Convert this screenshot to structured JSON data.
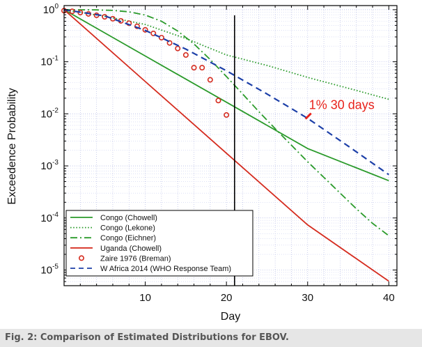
{
  "caption": "Fig. 2: Comparison of Estimated Distributions for EBOV.",
  "chart_data": {
    "type": "line",
    "xlabel": "Day",
    "ylabel": "Exceedence Probability",
    "xlim": [
      0,
      41
    ],
    "ylim": [
      5e-06,
      1.2
    ],
    "yscale": "log",
    "xticks": [
      10,
      20,
      30,
      40
    ],
    "xtick_labels": [
      "10",
      "20",
      "30",
      "40"
    ],
    "yticks": [
      {
        "mantissa": "10",
        "exp": "0",
        "value": 1
      },
      {
        "mantissa": "10",
        "exp": "-1",
        "value": 0.1
      },
      {
        "mantissa": "10",
        "exp": "-2",
        "value": 0.01
      },
      {
        "mantissa": "10",
        "exp": "-3",
        "value": 0.001
      },
      {
        "mantissa": "10",
        "exp": "-4",
        "value": 0.0001
      },
      {
        "mantissa": "10",
        "exp": "-5",
        "value": 1e-05
      }
    ],
    "vline_x": 21,
    "series": [
      {
        "name": "Congo (Chowell)",
        "style": "solid",
        "color": "#2a9a2a",
        "x": [
          0,
          10,
          20,
          30,
          40
        ],
        "y": [
          1,
          0.129,
          0.0167,
          0.00215,
          0.00052
        ]
      },
      {
        "name": "Congo (Lekone)",
        "style": "dotted",
        "color": "#2a9a2a",
        "x": [
          0,
          5,
          10,
          15,
          20,
          25,
          30,
          35,
          40
        ],
        "y": [
          1,
          0.75,
          0.52,
          0.28,
          0.135,
          0.085,
          0.05,
          0.031,
          0.019
        ]
      },
      {
        "name": "Congo (Eichner)",
        "style": "dashdot",
        "color": "#2a9a2a",
        "x": [
          0,
          4,
          6,
          8,
          10,
          12,
          14,
          16,
          18,
          20,
          22,
          24,
          26,
          28,
          30,
          32,
          34,
          36,
          38,
          40
        ],
        "y": [
          1,
          0.99,
          0.97,
          0.91,
          0.79,
          0.6,
          0.39,
          0.22,
          0.11,
          0.052,
          0.024,
          0.011,
          0.0052,
          0.0025,
          0.0012,
          0.0006,
          0.0003,
          0.00015,
          7.85e-05,
          4.55e-05
        ]
      },
      {
        "name": "Uganda (Chowell)",
        "style": "solid",
        "color": "#d52b1e",
        "x": [
          0,
          10,
          20,
          30,
          40
        ],
        "y": [
          1,
          0.0417,
          0.00175,
          7.35e-05,
          6.1e-06
        ]
      },
      {
        "name": "Zaire 1976 (Breman)",
        "style": "markers",
        "color": "#d52b1e",
        "x": [
          0,
          1,
          2,
          3,
          4,
          5,
          6,
          7,
          8,
          9,
          10,
          11,
          12,
          13,
          14,
          15,
          16,
          17,
          18,
          19,
          20
        ],
        "y": [
          0.96,
          0.93,
          0.88,
          0.83,
          0.78,
          0.73,
          0.67,
          0.61,
          0.55,
          0.48,
          0.41,
          0.35,
          0.29,
          0.23,
          0.18,
          0.135,
          0.077,
          0.077,
          0.045,
          0.018,
          0.0095
        ]
      },
      {
        "name": "W Africa 2014 (WHO Response Team)",
        "style": "dashed",
        "color": "#1c3fa8",
        "x": [
          0,
          5,
          10,
          15,
          20,
          25,
          30,
          35,
          40
        ],
        "y": [
          1,
          0.76,
          0.4,
          0.175,
          0.067,
          0.024,
          0.0082,
          0.0024,
          0.00068
        ]
      }
    ],
    "annotations": [
      {
        "text": "1% 30 days",
        "x": 30,
        "y": 0.0085,
        "color": "#e8221b"
      }
    ]
  }
}
